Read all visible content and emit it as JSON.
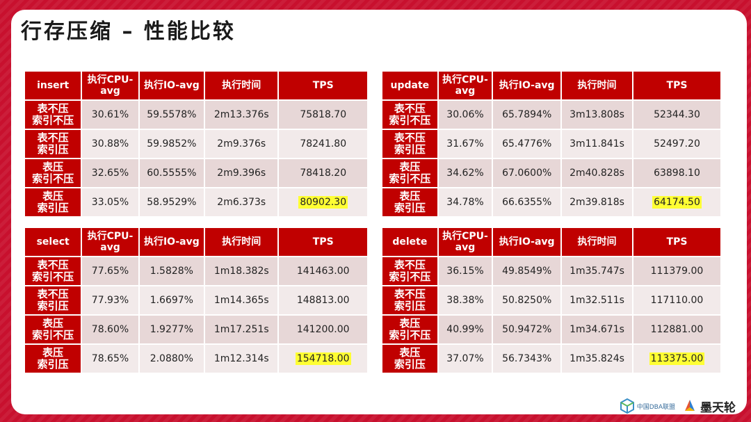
{
  "slide": {
    "title": "行存压缩 – 性能比较"
  },
  "col_headers": [
    "执行CPU-avg",
    "执行IO-avg",
    "执行时间",
    "TPS"
  ],
  "row_labels": [
    [
      "表不压",
      "索引不压"
    ],
    [
      "表不压",
      "索引压"
    ],
    [
      "表压",
      "索引不压"
    ],
    [
      "表压",
      "索引压"
    ]
  ],
  "tables": {
    "insert": {
      "name": "insert",
      "rows": [
        [
          "30.61%",
          "59.5578%",
          "2m13.376s",
          "75818.70"
        ],
        [
          "30.88%",
          "59.9852%",
          "2m9.376s",
          "78241.80"
        ],
        [
          "32.65%",
          "60.5555%",
          "2m9.396s",
          "78418.20"
        ],
        [
          "33.05%",
          "58.9529%",
          "2m6.373s",
          "80902.30"
        ]
      ]
    },
    "update": {
      "name": "update",
      "rows": [
        [
          "30.06%",
          "65.7894%",
          "3m13.808s",
          "52344.30"
        ],
        [
          "31.67%",
          "65.4776%",
          "3m11.841s",
          "52497.20"
        ],
        [
          "34.62%",
          "67.0600%",
          "2m40.828s",
          "63898.10"
        ],
        [
          "34.78%",
          "66.6355%",
          "2m39.818s",
          "64174.50"
        ]
      ]
    },
    "select": {
      "name": "select",
      "rows": [
        [
          "77.65%",
          "1.5828%",
          "1m18.382s",
          "141463.00"
        ],
        [
          "77.93%",
          "1.6697%",
          "1m14.365s",
          "148813.00"
        ],
        [
          "78.60%",
          "1.9277%",
          "1m17.251s",
          "141200.00"
        ],
        [
          "78.65%",
          "2.0880%",
          "1m12.314s",
          "154718.00"
        ]
      ]
    },
    "delete": {
      "name": "delete",
      "rows": [
        [
          "36.15%",
          "49.8549%",
          "1m35.747s",
          "111379.00"
        ],
        [
          "38.38%",
          "50.8250%",
          "1m32.511s",
          "117110.00"
        ],
        [
          "40.99%",
          "50.9472%",
          "1m34.671s",
          "112881.00"
        ],
        [
          "37.07%",
          "56.7343%",
          "1m35.824s",
          "113375.00"
        ]
      ]
    }
  },
  "highlight_color": "#ffff33",
  "header_color": "#c00000",
  "logos": {
    "dba_text": "中国DBA联盟",
    "mtk_text": "墨天轮"
  }
}
